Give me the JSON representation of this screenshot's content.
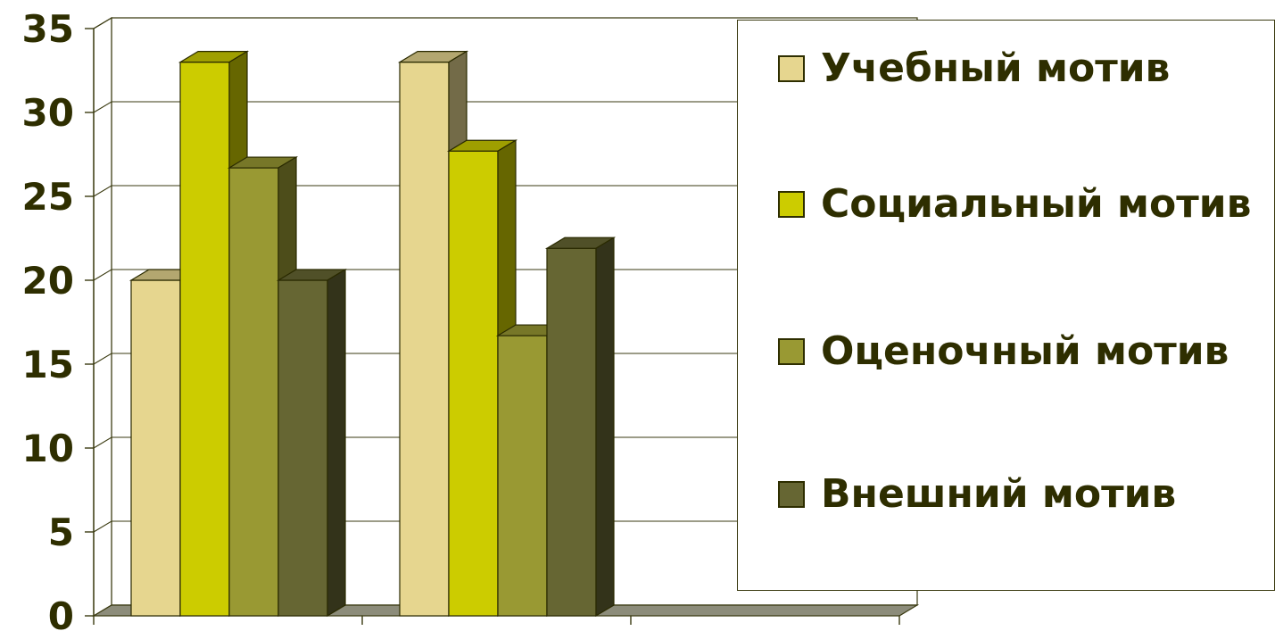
{
  "chart_data": {
    "type": "bar",
    "categories": [
      "",
      "",
      ""
    ],
    "series": [
      {
        "name": "Учебный мотив",
        "values": [
          20,
          33,
          null
        ],
        "color": "#e6d68f"
      },
      {
        "name": "Социальный мотив",
        "values": [
          33,
          27.7,
          null
        ],
        "color": "#cccc00"
      },
      {
        "name": "Оценочный мотив",
        "values": [
          26.7,
          16.7,
          null
        ],
        "color": "#999933"
      },
      {
        "name": "Внешний мотив",
        "values": [
          20,
          21.9,
          null
        ],
        "color": "#666633"
      }
    ],
    "yticks": [
      "0",
      "5",
      "10",
      "15",
      "20",
      "25",
      "30",
      "35"
    ],
    "ylim": [
      0,
      35
    ],
    "grid": true,
    "legend_position": "right",
    "three_d": true
  }
}
